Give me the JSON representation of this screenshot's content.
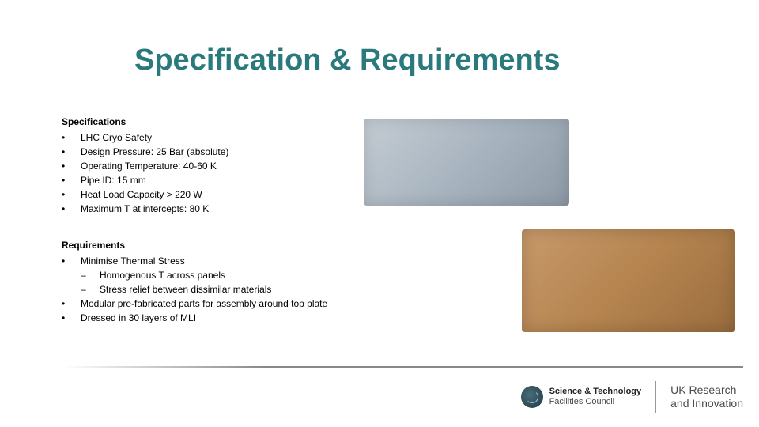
{
  "title": {
    "text": "Specification & Requirements",
    "color": "#2a7a7d",
    "fontsize": 38,
    "fontweight": "bold"
  },
  "sections": [
    {
      "header": "Specifications",
      "items": [
        {
          "text": "LHC Cryo Safety"
        },
        {
          "text": "Design Pressure: 25 Bar (absolute)"
        },
        {
          "text": "Operating Temperature: 40-60 K"
        },
        {
          "text": "Pipe ID: 15 mm"
        },
        {
          "text": "Heat Load Capacity > 220 W"
        },
        {
          "text": "Maximum T at intercepts: 80 K"
        }
      ]
    },
    {
      "header": "Requirements",
      "items": [
        {
          "text": "Minimise Thermal Stress",
          "subitems": [
            "Homogenous T across panels",
            "Stress relief between dissimilar materials"
          ]
        },
        {
          "text": "Modular pre-fabricated parts for assembly around top plate"
        },
        {
          "text": "Dressed in 30 layers of MLI"
        }
      ]
    }
  ],
  "images": {
    "top": {
      "desc": "grey-cryostat-render",
      "bg_colors": [
        "#c5cdd4",
        "#a8b4bf",
        "#8e9aa6"
      ]
    },
    "bottom": {
      "desc": "copper-cryostat-render",
      "bg_colors": [
        "#c89a6b",
        "#b5844f",
        "#9a6d3e"
      ]
    }
  },
  "footer": {
    "left_logo_text_line1": "Science & Technology",
    "left_logo_text_line2": "Facilities Council",
    "right_text_line1": "UK Research",
    "right_text_line2": "and Innovation"
  },
  "styling": {
    "body_fontsize": 12,
    "body_color": "#000000",
    "bullet_marker": "•",
    "subbullet_marker": "–",
    "background": "#ffffff"
  }
}
